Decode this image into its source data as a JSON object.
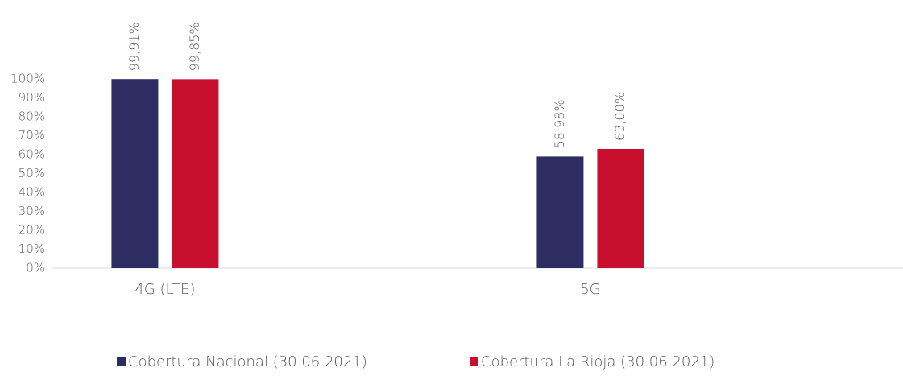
{
  "chart_data": {
    "type": "bar",
    "categories": [
      "4G (LTE)",
      "5G"
    ],
    "series": [
      {
        "name": "Cobertura Nacional (30.06.2021)",
        "color": "#2e2d62",
        "values": [
          99.91,
          58.98
        ],
        "value_labels": [
          "99,91%",
          "58,98%"
        ]
      },
      {
        "name": "Cobertura La Rioja (30.06.2021)",
        "color": "#c8102e",
        "values": [
          99.85,
          63.0
        ],
        "value_labels": [
          "99,85%",
          "63,00%"
        ]
      }
    ],
    "ylim": [
      0,
      100
    ],
    "yticks": [
      {
        "value": 0,
        "label": "0%"
      },
      {
        "value": 10,
        "label": "10%"
      },
      {
        "value": 20,
        "label": "20%"
      },
      {
        "value": 30,
        "label": "30%"
      },
      {
        "value": 40,
        "label": "40%"
      },
      {
        "value": 50,
        "label": "50%"
      },
      {
        "value": 60,
        "label": "60%"
      },
      {
        "value": 70,
        "label": "70%"
      },
      {
        "value": 80,
        "label": "80%"
      },
      {
        "value": 90,
        "label": "90%"
      },
      {
        "value": 100,
        "label": "100%"
      }
    ],
    "legend": "bottom"
  }
}
